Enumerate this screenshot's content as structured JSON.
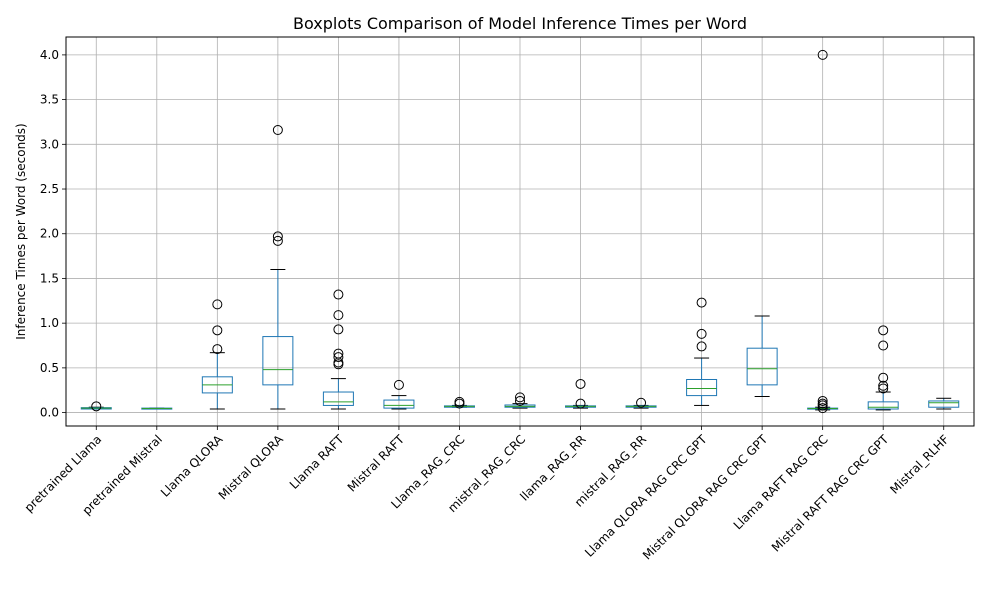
{
  "chart_data": {
    "type": "boxplot",
    "title": "Boxplots Comparison of Model Inference Times per Word",
    "xlabel": "",
    "ylabel": "Inference Times per Word (seconds)",
    "ylim": [
      -0.15,
      4.2
    ],
    "yticks": [
      0.0,
      0.5,
      1.0,
      1.5,
      2.0,
      2.5,
      3.0,
      3.5,
      4.0
    ],
    "ytick_labels": [
      "0.0",
      "0.5",
      "1.0",
      "1.5",
      "2.0",
      "2.5",
      "3.0",
      "3.5",
      "4.0"
    ],
    "grid": true,
    "box_color": "#1f77b4",
    "median_color": "#2ca02c",
    "categories": [
      "pretrained Llama",
      "pretrained Mistral",
      "Llama QLORA",
      "Mistral QLORA",
      "Llama RAFT",
      "Mistral RAFT",
      "Llama_RAG_CRC",
      "mistral_RAG_CRC",
      "llama_RAG_RR",
      "mistral_RAG_RR",
      "Llama QLORA RAG CRC GPT",
      "Mistral QLORA RAG CRC GPT",
      "Llama RAFT RAG CRC",
      "Mistral RAFT RAG CRC GPT",
      "Mistral_RLHF"
    ],
    "boxes": [
      {
        "whislo": 0.04,
        "q1": 0.04,
        "med": 0.05,
        "q3": 0.055,
        "whishi": 0.06,
        "fliers": [
          0.07
        ]
      },
      {
        "whislo": 0.04,
        "q1": 0.04,
        "med": 0.045,
        "q3": 0.05,
        "whishi": 0.05,
        "fliers": []
      },
      {
        "whislo": 0.04,
        "q1": 0.22,
        "med": 0.31,
        "q3": 0.4,
        "whishi": 0.67,
        "fliers": [
          0.71,
          0.92,
          1.21
        ]
      },
      {
        "whislo": 0.04,
        "q1": 0.31,
        "med": 0.48,
        "q3": 0.85,
        "whishi": 1.6,
        "fliers": [
          1.92,
          1.97,
          3.16
        ]
      },
      {
        "whislo": 0.04,
        "q1": 0.08,
        "med": 0.12,
        "q3": 0.23,
        "whishi": 0.38,
        "fliers": [
          0.54,
          0.56,
          0.62,
          0.66,
          0.93,
          1.09,
          1.32
        ]
      },
      {
        "whislo": 0.04,
        "q1": 0.05,
        "med": 0.08,
        "q3": 0.14,
        "whishi": 0.19,
        "fliers": [
          0.31
        ]
      },
      {
        "whislo": 0.06,
        "q1": 0.06,
        "med": 0.07,
        "q3": 0.075,
        "whishi": 0.08,
        "fliers": [
          0.1,
          0.12
        ]
      },
      {
        "whislo": 0.05,
        "q1": 0.06,
        "med": 0.07,
        "q3": 0.085,
        "whishi": 0.1,
        "fliers": [
          0.13,
          0.17
        ]
      },
      {
        "whislo": 0.05,
        "q1": 0.06,
        "med": 0.07,
        "q3": 0.075,
        "whishi": 0.08,
        "fliers": [
          0.1,
          0.32
        ]
      },
      {
        "whislo": 0.05,
        "q1": 0.06,
        "med": 0.07,
        "q3": 0.075,
        "whishi": 0.08,
        "fliers": [
          0.11
        ]
      },
      {
        "whislo": 0.08,
        "q1": 0.19,
        "med": 0.27,
        "q3": 0.37,
        "whishi": 0.61,
        "fliers": [
          0.74,
          0.88,
          1.23
        ]
      },
      {
        "whislo": 0.18,
        "q1": 0.31,
        "med": 0.49,
        "q3": 0.72,
        "whishi": 1.08,
        "fliers": []
      },
      {
        "whislo": 0.03,
        "q1": 0.04,
        "med": 0.045,
        "q3": 0.05,
        "whishi": 0.06,
        "fliers": [
          0.05,
          0.08,
          0.1,
          0.13,
          4.0
        ]
      },
      {
        "whislo": 0.03,
        "q1": 0.04,
        "med": 0.06,
        "q3": 0.12,
        "whishi": 0.23,
        "fliers": [
          0.27,
          0.3,
          0.39,
          0.75,
          0.92
        ]
      },
      {
        "whislo": 0.04,
        "q1": 0.06,
        "med": 0.11,
        "q3": 0.13,
        "whishi": 0.16,
        "fliers": []
      }
    ]
  }
}
